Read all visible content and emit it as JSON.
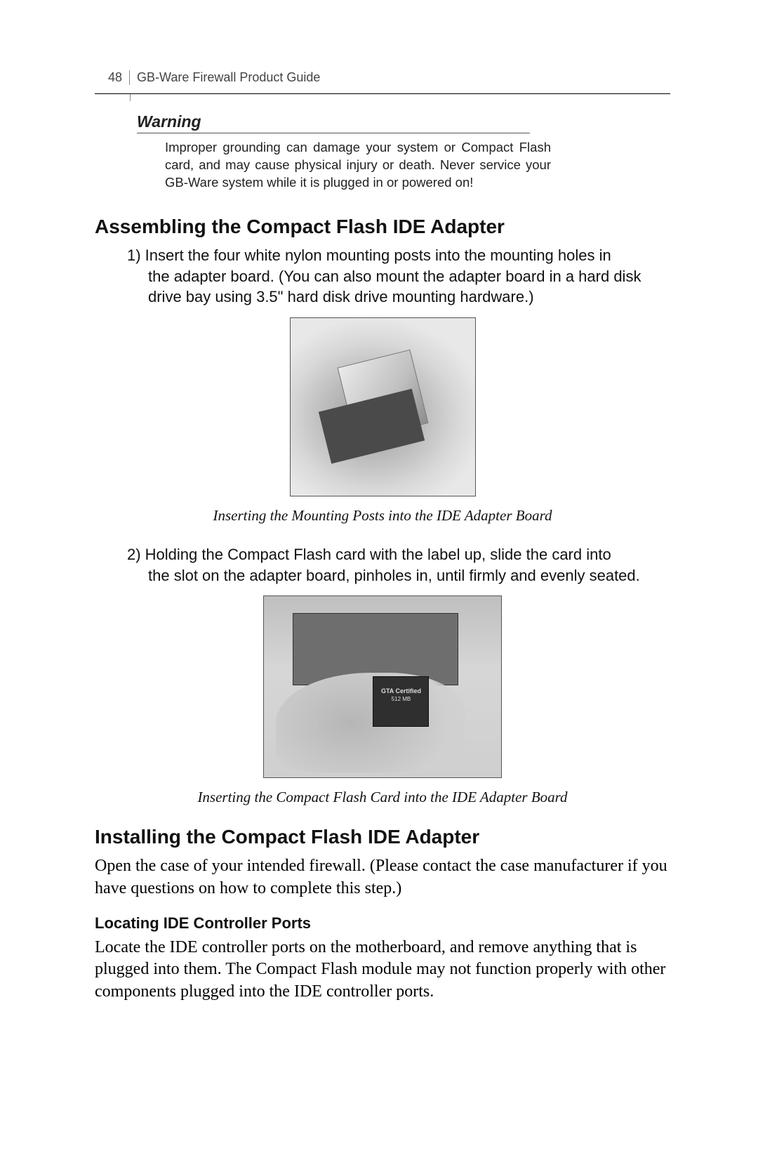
{
  "page": {
    "number": "48",
    "doc_title": "GB-Ware Firewall Product Guide"
  },
  "warning": {
    "title": "Warning",
    "body": "Improper grounding can damage your system or Compact Flash card, and may cause physical injury or death. Never service your GB-Ware system while it is plugged in or powered on!"
  },
  "section1": {
    "heading": "Assembling the Compact Flash IDE Adapter",
    "step1_lead": "1) Insert the four white nylon mounting posts into the mounting holes in",
    "step1_rest": "the adapter board. (You can also mount the adapter board in a hard disk drive bay using 3.5\" hard disk drive mounting hardware.)",
    "caption1": "Inserting the Mounting Posts into the IDE Adapter Board",
    "step2_lead": "2) Holding the Compact Flash card with the label up, slide the card into",
    "step2_rest": "the slot on the adapter board, pinholes in, until firmly and evenly seated.",
    "caption2": "Inserting the Compact Flash Card into the IDE Adapter Board"
  },
  "card_label": {
    "line1": "GTA Certified",
    "line2": "512 MB"
  },
  "section2": {
    "heading": "Installing the Compact Flash IDE Adapter",
    "body": "Open the case of your intended firewall. (Please contact the case manufacturer if you have questions on how to complete this step.)",
    "sub_heading": "Locating IDE Controller Ports",
    "sub_body": "Locate the IDE controller ports on the motherboard, and remove anything that is plugged into them. The Compact Flash module may not function properly with other components plugged into the IDE controller ports."
  },
  "colors": {
    "text": "#000000",
    "rule": "#000000",
    "caption": "#111111",
    "figure_border": "#555555",
    "figure_bg": "#cfcfcf"
  }
}
